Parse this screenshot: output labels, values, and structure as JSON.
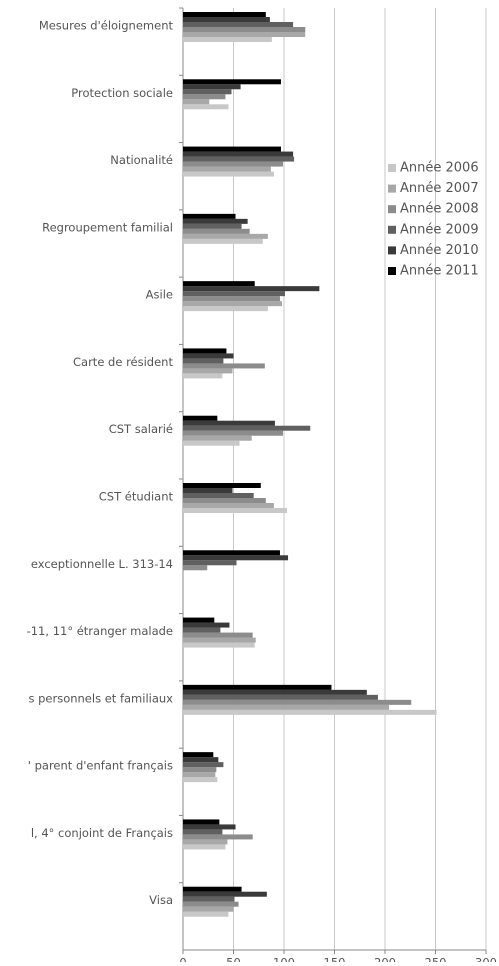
{
  "chart_data": {
    "type": "hbar",
    "categories": [
      "Mesures d'éloignement",
      "Protection sociale",
      "Nationalité",
      "Regroupement familial",
      "Asile",
      "Carte de résident",
      "CST salarié",
      "CST étudiant",
      "exceptionnelle  L. 313-14",
      "-11, 11° étranger malade",
      "s personnels et familiaux",
      "' parent d'enfant français",
      "l, 4° conjoint de Français",
      "Visa"
    ],
    "series": [
      {
        "name": "Année 2006",
        "color": "#c8c8c8",
        "values": [
          88,
          45,
          90,
          79,
          84,
          39,
          56,
          103,
          0,
          71,
          251,
          34,
          42,
          45
        ]
      },
      {
        "name": "Année 2007",
        "color": "#a8a8a8",
        "values": [
          121,
          26,
          87,
          84,
          98,
          49,
          68,
          90,
          0,
          72,
          204,
          32,
          44,
          50
        ]
      },
      {
        "name": "Année 2008",
        "color": "#8c8c8c",
        "values": [
          121,
          42,
          99,
          66,
          96,
          81,
          99,
          82,
          24,
          69,
          226,
          33,
          69,
          55
        ]
      },
      {
        "name": "Année 2009",
        "color": "#606060",
        "values": [
          109,
          48,
          110,
          58,
          101,
          40,
          126,
          70,
          53,
          37,
          193,
          40,
          39,
          51
        ]
      },
      {
        "name": "Année 2010",
        "color": "#3a3a3a",
        "values": [
          86,
          57,
          109,
          64,
          135,
          50,
          91,
          49,
          104,
          46,
          182,
          35,
          52,
          83
        ]
      },
      {
        "name": "Année 2011",
        "color": "#000000",
        "values": [
          82,
          97,
          97,
          52,
          71,
          43,
          34,
          77,
          96,
          31,
          147,
          30,
          36,
          58
        ]
      }
    ],
    "xlim": [
      0,
      300
    ],
    "xticks": [
      0,
      50,
      100,
      150,
      200,
      250,
      300
    ],
    "grid": true,
    "legend": "right"
  }
}
